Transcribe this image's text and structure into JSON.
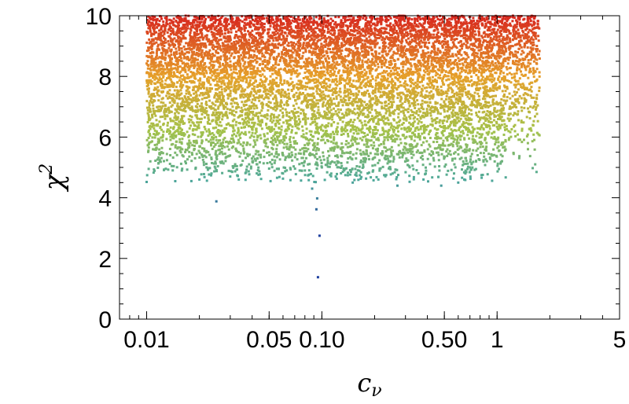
{
  "chart_data": {
    "type": "scatter",
    "title": "",
    "xlabel": "c",
    "xlabel_sub": "ν",
    "ylabel": "χ",
    "ylabel_sup": "2",
    "x_scale": "log",
    "xlim": [
      0.007,
      5.0
    ],
    "ylim": [
      0,
      10
    ],
    "grid": false,
    "legend": "none",
    "x_tick_labels": [
      "0.01",
      "0.05",
      "0.10",
      "0.50",
      "1",
      "5"
    ],
    "x_ticks": [
      0.01,
      0.05,
      0.1,
      0.5,
      1,
      5
    ],
    "y_tick_labels": [
      "0",
      "2",
      "4",
      "6",
      "8",
      "10"
    ],
    "y_ticks": [
      0,
      2,
      4,
      6,
      8,
      10
    ],
    "color_map": {
      "low": "#1e3f9e",
      "mid_low": "#4ea99a",
      "mid": "#a4c24a",
      "mid_high": "#e6a02a",
      "high": "#d7261e"
    },
    "band": {
      "main_x_range": [
        0.01,
        1.12
      ],
      "tail_x_range": [
        1.12,
        1.75
      ],
      "y_floor_main": 4.5,
      "y_top": 10
    },
    "notable_points": [
      {
        "x": 0.095,
        "y": 1.38
      },
      {
        "x": 0.097,
        "y": 2.75
      },
      {
        "x": 0.093,
        "y": 3.62
      },
      {
        "x": 0.094,
        "y": 3.98
      },
      {
        "x": 0.025,
        "y": 3.88
      }
    ],
    "series": [
      {
        "points": [
          [
            0.01,
            4.52
          ],
          [
            0.0105,
            5.2
          ],
          [
            0.011,
            6.1
          ],
          [
            0.012,
            7.0
          ],
          [
            0.013,
            8.4
          ],
          [
            0.014,
            9.8
          ],
          [
            0.016,
            5.4
          ],
          [
            0.018,
            4.55
          ],
          [
            0.02,
            4.6
          ],
          [
            0.022,
            5.0
          ],
          [
            0.024,
            6.3
          ],
          [
            0.027,
            7.4
          ],
          [
            0.03,
            4.7
          ],
          [
            0.033,
            5.8
          ],
          [
            0.037,
            6.9
          ],
          [
            0.041,
            8.1
          ],
          [
            0.045,
            4.62
          ],
          [
            0.05,
            5.5
          ],
          [
            0.055,
            7.2
          ],
          [
            0.06,
            4.8
          ],
          [
            0.066,
            6.0
          ],
          [
            0.072,
            8.8
          ],
          [
            0.08,
            4.9
          ],
          [
            0.088,
            4.3
          ],
          [
            0.092,
            5.1
          ],
          [
            0.1,
            5.0
          ],
          [
            0.11,
            6.6
          ],
          [
            0.12,
            4.7
          ],
          [
            0.135,
            7.7
          ],
          [
            0.15,
            4.5
          ],
          [
            0.17,
            5.9
          ],
          [
            0.19,
            8.3
          ],
          [
            0.21,
            4.6
          ],
          [
            0.24,
            6.2
          ],
          [
            0.27,
            4.4
          ],
          [
            0.3,
            5.2
          ],
          [
            0.34,
            7.5
          ],
          [
            0.38,
            4.6
          ],
          [
            0.43,
            5.5
          ],
          [
            0.48,
            4.4
          ],
          [
            0.54,
            6.4
          ],
          [
            0.6,
            4.5
          ],
          [
            0.65,
            4.6
          ],
          [
            0.7,
            5.0
          ],
          [
            0.76,
            6.8
          ],
          [
            0.82,
            7.9
          ],
          [
            0.9,
            6.5
          ],
          [
            0.98,
            8.6
          ],
          [
            1.05,
            9.5
          ],
          [
            1.1,
            7.4
          ],
          [
            1.2,
            9.0
          ],
          [
            1.3,
            8.2
          ],
          [
            1.4,
            9.7
          ],
          [
            1.5,
            5.6
          ],
          [
            1.55,
            7.0
          ],
          [
            1.6,
            6.4
          ],
          [
            1.65,
            5.1
          ],
          [
            1.68,
            4.85
          ],
          [
            1.7,
            8.9
          ],
          [
            1.72,
            9.6
          ]
        ]
      }
    ]
  }
}
